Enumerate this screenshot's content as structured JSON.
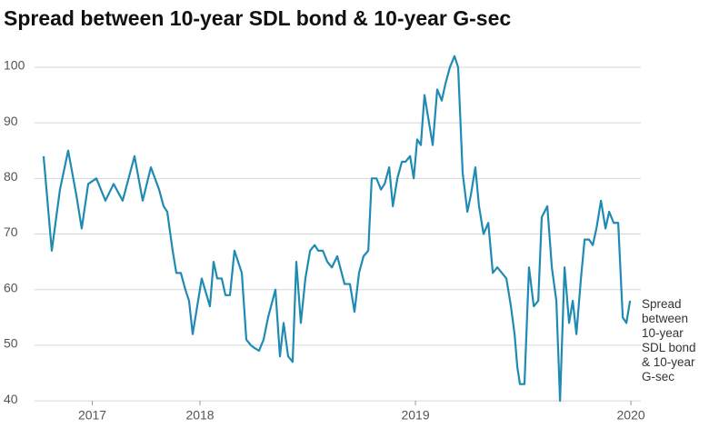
{
  "chart_data": {
    "type": "line",
    "title": "Spread between 10-year SDL bond & 10-year G-sec",
    "x": [
      2017.274,
      2017.312,
      2017.35,
      2017.388,
      2017.426,
      2017.451,
      2017.481,
      2017.519,
      2017.561,
      2017.599,
      2017.641,
      2017.696,
      2017.734,
      2017.772,
      2017.81,
      2017.831,
      2017.848,
      2017.873,
      2017.89,
      2017.911,
      2017.932,
      2017.949,
      2017.966,
      2017.987,
      2018.008,
      2018.046,
      2018.063,
      2018.08,
      2018.101,
      2018.118,
      2018.139,
      2018.16,
      2018.194,
      2018.215,
      2018.236,
      2018.253,
      2018.274,
      2018.295,
      2018.316,
      2018.35,
      2018.371,
      2018.388,
      2018.409,
      2018.43,
      2018.447,
      2018.468,
      2018.489,
      2018.511,
      2018.532,
      2018.549,
      2018.57,
      2018.591,
      2018.612,
      2018.637,
      2018.671,
      2018.696,
      2018.717,
      2018.738,
      2018.759,
      2018.781,
      2018.797,
      2018.819,
      2018.84,
      2018.857,
      2018.878,
      2018.895,
      2018.916,
      2018.937,
      2018.954,
      2018.975,
      2018.992,
      2019.008,
      2019.025,
      2019.042,
      2019.063,
      2019.08,
      2019.101,
      2019.122,
      2019.139,
      2019.16,
      2019.181,
      2019.198,
      2019.219,
      2019.241,
      2019.257,
      2019.278,
      2019.295,
      2019.316,
      2019.338,
      2019.359,
      2019.38,
      2019.401,
      2019.422,
      2019.443,
      2019.46,
      2019.473,
      2019.485,
      2019.506,
      2019.527,
      2019.549,
      2019.57,
      2019.586,
      2019.612,
      2019.633,
      2019.654,
      2019.671,
      2019.692,
      2019.713,
      2019.73,
      2019.747,
      2019.768,
      2019.785,
      2019.806,
      2019.823,
      2019.84,
      2019.861,
      2019.882,
      2019.899,
      2019.92,
      2019.941,
      2019.962,
      2019.979,
      2019.996
    ],
    "series": [
      {
        "name": "Spread between 10-year SDL bond & 10-year G-sec",
        "color": "#1f8bb3",
        "values": [
          84,
          67,
          78,
          85,
          77,
          71,
          79,
          80,
          76,
          79,
          76,
          84,
          76,
          82,
          78,
          75,
          74,
          67,
          63,
          63,
          60,
          58,
          52,
          57,
          62,
          57,
          65,
          62,
          62,
          59,
          59,
          67,
          63,
          51,
          50,
          49.5,
          49,
          51,
          55,
          60,
          48,
          54,
          48,
          47,
          65,
          54,
          62,
          67,
          68,
          67,
          67,
          65,
          64,
          66,
          61,
          61,
          56,
          63,
          66,
          67,
          80,
          80,
          78,
          79,
          82,
          75,
          80,
          83,
          83,
          84,
          80,
          87,
          86,
          95,
          90,
          86,
          96,
          94,
          97,
          100,
          102,
          100,
          81,
          74,
          77,
          82,
          75,
          70,
          72,
          63,
          64,
          63,
          62,
          57,
          52,
          46,
          43,
          43,
          64,
          57,
          58,
          73,
          75,
          64,
          58,
          40,
          64,
          54,
          58,
          52,
          62,
          69,
          69,
          68,
          71,
          76,
          71,
          74,
          72,
          72,
          55,
          54,
          58
        ]
      }
    ],
    "xlim": [
      2017.232,
      2020.046
    ],
    "xticks": [
      {
        "value": 2017.5,
        "label": "2017"
      },
      2018,
      2019,
      2020
    ],
    "ylim": [
      38,
      103
    ],
    "yticks": [
      40,
      50,
      60,
      70,
      80,
      90,
      100
    ],
    "grid": true
  }
}
